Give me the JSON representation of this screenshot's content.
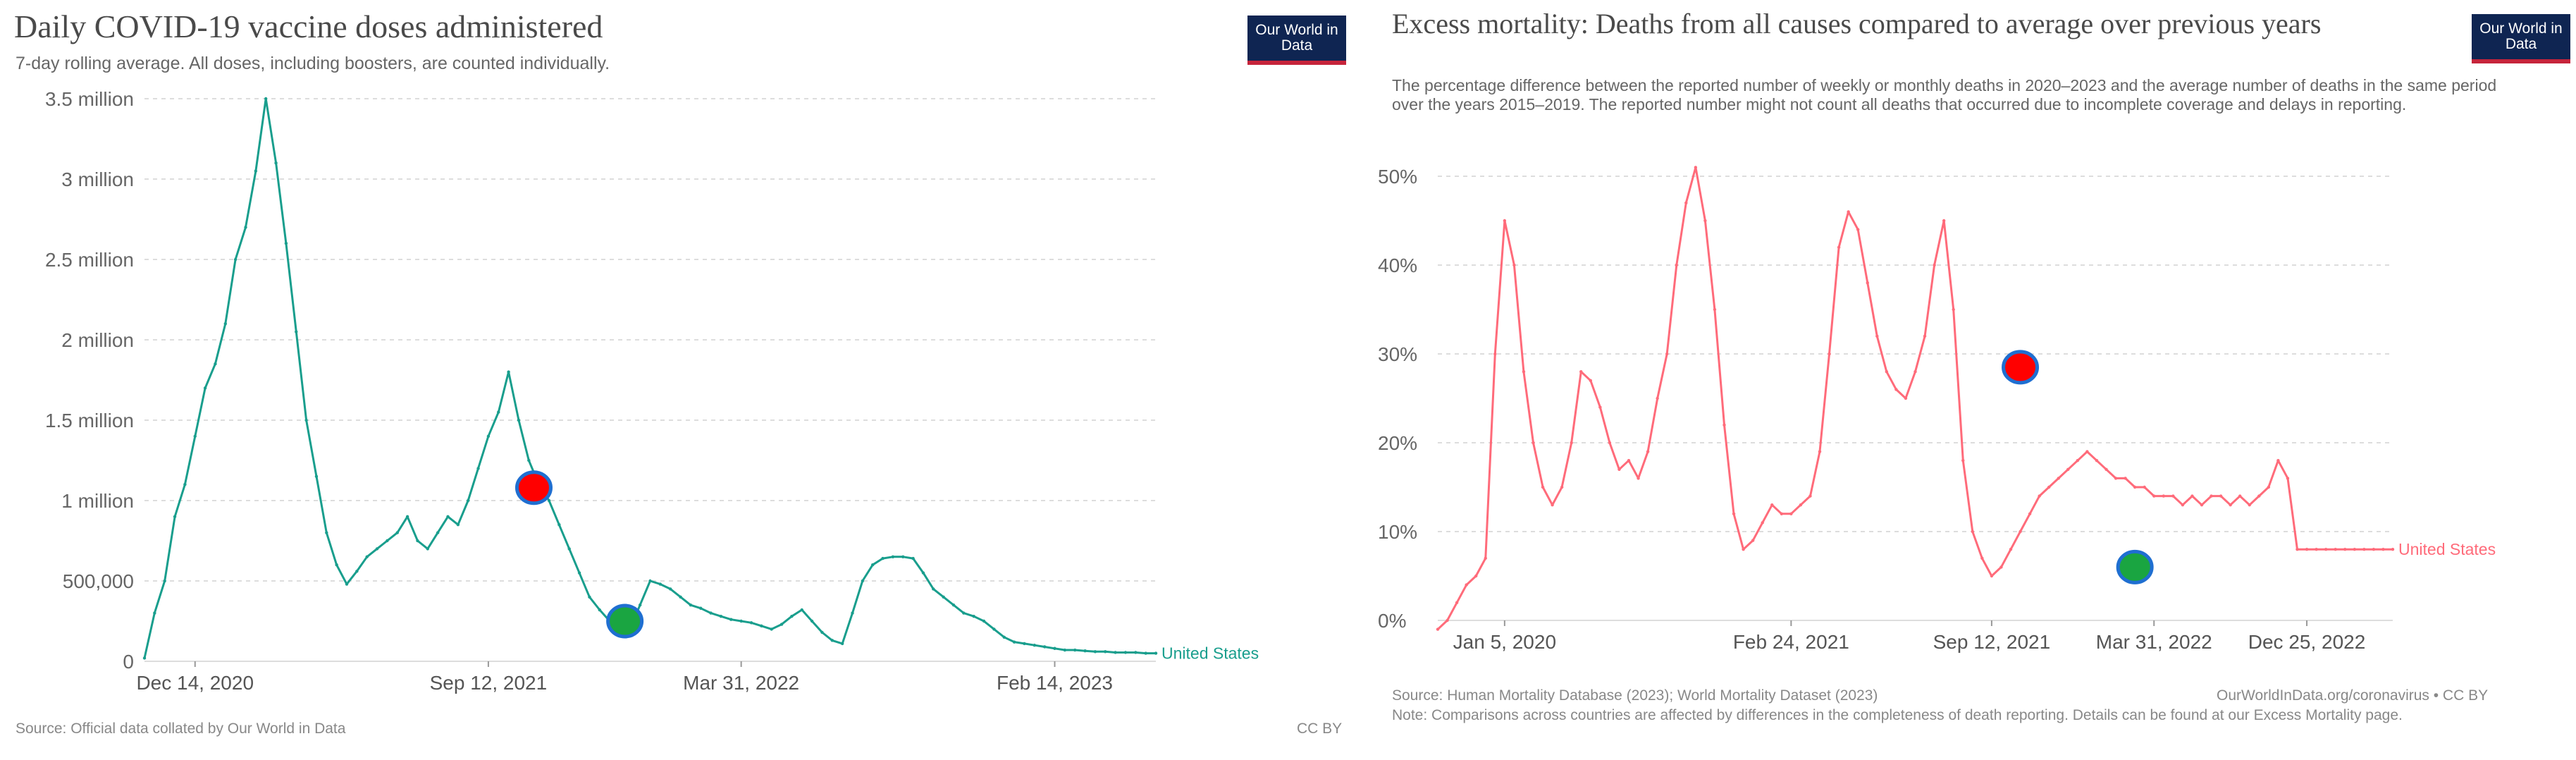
{
  "chart_data": [
    {
      "type": "line",
      "title": "Daily COVID-19 vaccine doses administered",
      "subtitle": "7-day rolling average. All doses, including boosters, are counted individually.",
      "logo": "Our World in Data",
      "source": "Source: Official data collated by Our World in Data",
      "license": "CC BY",
      "ylim": [
        0,
        3500000
      ],
      "y_ticks": [
        0,
        500000,
        1000000,
        1500000,
        2000000,
        2500000,
        3000000,
        3500000
      ],
      "y_tick_labels": [
        "0",
        "500,000",
        "1 million",
        "1.5 million",
        "2 million",
        "2.5 million",
        "3 million",
        "3.5 million"
      ],
      "x_range": [
        0,
        100
      ],
      "x_ticks": [
        {
          "x": 5,
          "label": "Dec 14, 2020"
        },
        {
          "x": 34,
          "label": "Sep 12, 2021"
        },
        {
          "x": 59,
          "label": "Mar 31, 2022"
        },
        {
          "x": 90,
          "label": "Feb 14, 2023"
        }
      ],
      "series": [
        {
          "name": "United States",
          "color": "#199e8d",
          "x": [
            0,
            1,
            2,
            3,
            4,
            5,
            6,
            7,
            8,
            9,
            10,
            11,
            12,
            13,
            14,
            15,
            16,
            17,
            18,
            19,
            20,
            21,
            22,
            23,
            24,
            25,
            26,
            27,
            28,
            29,
            30,
            31,
            32,
            33,
            34,
            35,
            36,
            37,
            38,
            39,
            40,
            41,
            42,
            43,
            44,
            45,
            46,
            47,
            48,
            49,
            50,
            51,
            52,
            53,
            54,
            55,
            56,
            57,
            58,
            59,
            60,
            61,
            62,
            63,
            64,
            65,
            66,
            67,
            68,
            69,
            70,
            71,
            72,
            73,
            74,
            75,
            76,
            77,
            78,
            79,
            80,
            81,
            82,
            83,
            84,
            85,
            86,
            87,
            88,
            89,
            90,
            91,
            92,
            93,
            94,
            95,
            96,
            97,
            98,
            99,
            100
          ],
          "values": [
            20000,
            300000,
            500000,
            900000,
            1100000,
            1400000,
            1700000,
            1850000,
            2100000,
            2500000,
            2700000,
            3050000,
            3500000,
            3100000,
            2600000,
            2050000,
            1500000,
            1150000,
            800000,
            600000,
            480000,
            560000,
            650000,
            700000,
            750000,
            800000,
            900000,
            750000,
            700000,
            800000,
            900000,
            850000,
            1000000,
            1200000,
            1400000,
            1550000,
            1800000,
            1500000,
            1250000,
            1100000,
            1000000,
            850000,
            700000,
            550000,
            400000,
            320000,
            250000,
            220000,
            200000,
            350000,
            500000,
            480000,
            450000,
            400000,
            350000,
            330000,
            300000,
            280000,
            260000,
            250000,
            240000,
            220000,
            200000,
            230000,
            280000,
            320000,
            250000,
            180000,
            130000,
            110000,
            300000,
            500000,
            600000,
            640000,
            650000,
            650000,
            640000,
            550000,
            450000,
            400000,
            350000,
            300000,
            280000,
            250000,
            200000,
            150000,
            120000,
            110000,
            100000,
            90000,
            80000,
            70000,
            70000,
            65000,
            60000,
            60000,
            55000,
            55000,
            55000,
            50000,
            50000
          ],
          "end_label": "United States"
        }
      ],
      "markers": [
        {
          "x": 38.5,
          "y": 1080000,
          "color": "#ff0000"
        },
        {
          "x": 47.5,
          "y": 250000,
          "color": "#1aa541"
        }
      ]
    },
    {
      "type": "line",
      "title": "Excess mortality: Deaths from all causes compared to average over previous years",
      "subtitle": "The percentage difference between the reported number of weekly or monthly deaths in 2020–2023 and the average number of deaths in the same period over the years 2015–2019. The reported number might not count all deaths that occurred due to incomplete coverage and delays in reporting.",
      "logo": "Our World in Data",
      "source": "Source: Human Mortality Database (2023); World Mortality Dataset (2023)",
      "source_right": "OurWorldInData.org/coronavirus • CC BY",
      "note": "Note: Comparisons across countries are affected by differences in the completeness of death reporting. Details can be found at our Excess Mortality page.",
      "ylim": [
        0,
        50
      ],
      "y_ticks": [
        0,
        10,
        20,
        30,
        40,
        50
      ],
      "y_tick_labels": [
        "0%",
        "10%",
        "20%",
        "30%",
        "40%",
        "50%"
      ],
      "x_range": [
        0,
        100
      ],
      "x_ticks": [
        {
          "x": 7,
          "label": "Jan 5, 2020"
        },
        {
          "x": 37,
          "label": "Feb 24, 2021"
        },
        {
          "x": 58,
          "label": "Sep 12, 2021"
        },
        {
          "x": 75,
          "label": "Mar 31, 2022"
        },
        {
          "x": 91,
          "label": "Dec 25, 2022"
        }
      ],
      "series": [
        {
          "name": "United States",
          "color": "#ff6b7a",
          "x": [
            0,
            1,
            2,
            3,
            4,
            5,
            6,
            7,
            8,
            9,
            10,
            11,
            12,
            13,
            14,
            15,
            16,
            17,
            18,
            19,
            20,
            21,
            22,
            23,
            24,
            25,
            26,
            27,
            28,
            29,
            30,
            31,
            32,
            33,
            34,
            35,
            36,
            37,
            38,
            39,
            40,
            41,
            42,
            43,
            44,
            45,
            46,
            47,
            48,
            49,
            50,
            51,
            52,
            53,
            54,
            55,
            56,
            57,
            58,
            59,
            60,
            61,
            62,
            63,
            64,
            65,
            66,
            67,
            68,
            69,
            70,
            71,
            72,
            73,
            74,
            75,
            76,
            77,
            78,
            79,
            80,
            81,
            82,
            83,
            84,
            85,
            86,
            87,
            88,
            89,
            90,
            91,
            92,
            93,
            94,
            95,
            96,
            97,
            98,
            99,
            100
          ],
          "values": [
            -1,
            0,
            2,
            4,
            5,
            7,
            30,
            45,
            40,
            28,
            20,
            15,
            13,
            15,
            20,
            28,
            27,
            24,
            20,
            17,
            18,
            16,
            19,
            25,
            30,
            40,
            47,
            51,
            45,
            35,
            22,
            12,
            8,
            9,
            11,
            13,
            12,
            12,
            13,
            14,
            19,
            30,
            42,
            46,
            44,
            38,
            32,
            28,
            26,
            25,
            28,
            32,
            40,
            45,
            35,
            18,
            10,
            7,
            5,
            6,
            8,
            10,
            12,
            14,
            15,
            16,
            17,
            18,
            19,
            18,
            17,
            16,
            16,
            15,
            15,
            14,
            14,
            14,
            13,
            14,
            13,
            14,
            14,
            13,
            14,
            13,
            14,
            15,
            18,
            16,
            8,
            8,
            8,
            8,
            8,
            8,
            8,
            8,
            8,
            8,
            8
          ],
          "end_label": "United States"
        }
      ],
      "markers": [
        {
          "x": 61,
          "y": 28.5,
          "color": "#ff0000"
        },
        {
          "x": 73,
          "y": 6,
          "color": "#1aa541"
        }
      ]
    }
  ]
}
